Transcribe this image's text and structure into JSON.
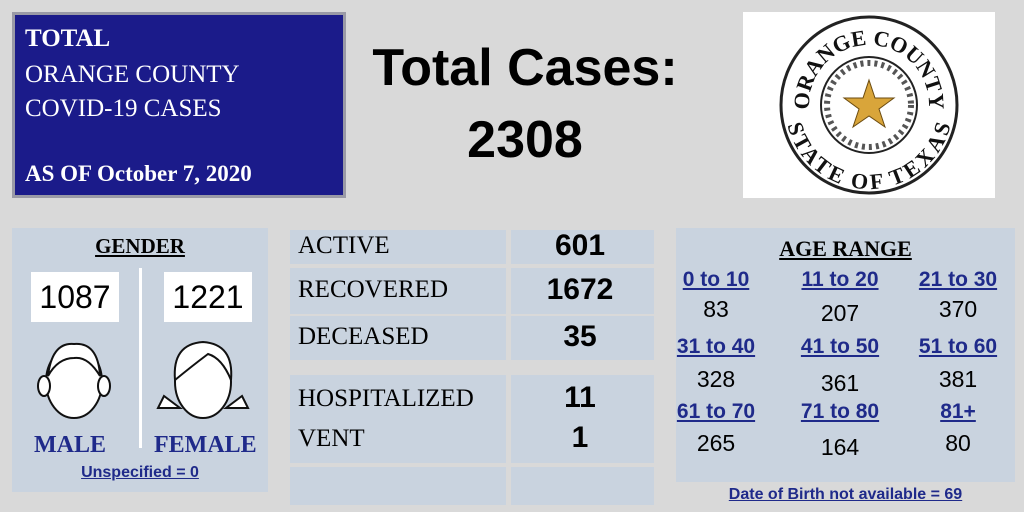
{
  "header": {
    "line1": "TOTAL",
    "line2": "ORANGE COUNTY",
    "line3": "COVID-19 CASES",
    "date": "AS OF October 7, 2020"
  },
  "total": {
    "label": "Total Cases:",
    "value": 2308
  },
  "logo": {
    "top": "ORANGE COUNTY",
    "bottom": "STATE OF TEXAS"
  },
  "gender": {
    "title": "GENDER",
    "male": {
      "count": 1087,
      "label": "MALE"
    },
    "female": {
      "count": 1221,
      "label": "FEMALE"
    },
    "note": "Unspecified = 0"
  },
  "status": {
    "rows": [
      [
        "ACTIVE",
        601
      ],
      [
        "RECOVERED",
        1672
      ],
      [
        "DECEASED",
        35
      ]
    ]
  },
  "hospital": {
    "rows": [
      [
        "HOSPITALIZED",
        11
      ],
      [
        "VENT",
        1
      ]
    ]
  },
  "age": {
    "title": "AGE RANGE",
    "groups": [
      [
        "0 to 10",
        83
      ],
      [
        "11 to 20",
        207
      ],
      [
        "21 to 30",
        370
      ],
      [
        "31 to 40",
        328
      ],
      [
        "41 to 50",
        361
      ],
      [
        "51 to 60",
        381
      ],
      [
        "61 to 70",
        265
      ],
      [
        "71 to 80",
        164
      ],
      [
        "81+",
        80
      ]
    ],
    "note": "Date of Birth not available = 69"
  }
}
